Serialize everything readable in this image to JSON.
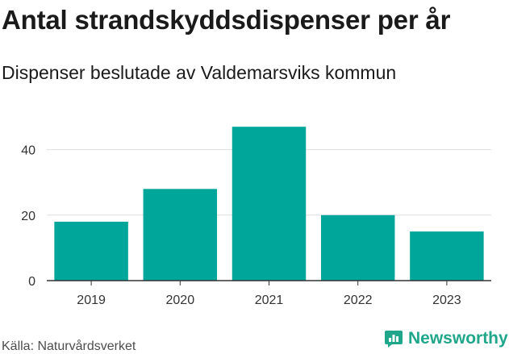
{
  "header": {
    "title": "Antal strandskyddsdispenser per år",
    "subtitle": "Dispenser beslutade av Valdemarsviks kommun"
  },
  "footer": {
    "source": "Källa: Naturvårdsverket",
    "brand": "Newsworthy"
  },
  "colors": {
    "bar": "#00a69a",
    "grid": "#dddddd",
    "axis": "#333333",
    "brand": "#20a68a"
  },
  "chart_data": {
    "type": "bar",
    "categories": [
      "2019",
      "2020",
      "2021",
      "2022",
      "2023"
    ],
    "values": [
      18,
      28,
      47,
      20,
      15
    ],
    "title": "Antal strandskyddsdispenser per år",
    "subtitle": "Dispenser beslutade av Valdemarsviks kommun",
    "xlabel": "",
    "ylabel": "",
    "ylim": [
      0,
      50
    ],
    "yticks": [
      0,
      20,
      40
    ],
    "grid": true,
    "legend": "none"
  }
}
